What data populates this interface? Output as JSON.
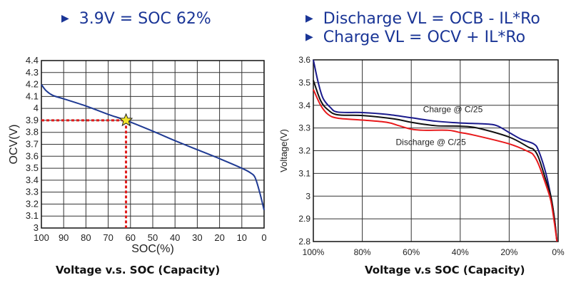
{
  "headlines": {
    "left": "3.9V = SOC 62%",
    "right": [
      "Discharge VL = OCB - IL*Ro",
      "Charge VL = OCV + IL*Ro"
    ],
    "bullet_icon": "triangle-right",
    "color": "#1a3596"
  },
  "chart_data": [
    {
      "type": "line",
      "caption": "Voltage v.s. SOC (Capacity)",
      "xlabel": "SOC(%)",
      "ylabel": "OCV(V)",
      "xlim": [
        100,
        0
      ],
      "ylim": [
        3,
        4.4
      ],
      "x_reversed": true,
      "grid": true,
      "xticks": [
        "100",
        "90",
        "80",
        "70",
        "60",
        "50",
        "40",
        "30",
        "20",
        "10",
        "0"
      ],
      "yticks": [
        "3",
        "3.1",
        "3.2",
        "3.3",
        "3.4",
        "3.5",
        "3.6",
        "3.7",
        "3.8",
        "3.9",
        "4",
        "4.1",
        "4.2",
        "4.3",
        "4.4"
      ],
      "series": [
        {
          "color": "#1f3a93",
          "x": [
            100,
            98,
            95,
            90,
            80,
            70,
            62,
            50,
            40,
            30,
            20,
            10,
            6,
            4,
            2,
            0
          ],
          "y": [
            4.2,
            4.15,
            4.11,
            4.08,
            4.02,
            3.95,
            3.9,
            3.81,
            3.73,
            3.655,
            3.58,
            3.5,
            3.46,
            3.42,
            3.3,
            3.15
          ]
        }
      ],
      "marker": {
        "shape": "star",
        "x": 62,
        "y": 3.9,
        "color": "#f5e72a",
        "guide_color": "#e01b1b"
      }
    },
    {
      "type": "line",
      "caption": "Voltage v.s SOC (Capacity)",
      "xlabel": "",
      "ylabel": "Voltage(V)",
      "xlim": [
        100,
        0
      ],
      "ylim": [
        2.8,
        3.6
      ],
      "x_reversed": true,
      "grid": true,
      "xticks": [
        "100%",
        "80%",
        "60%",
        "40%",
        "20%",
        "0%"
      ],
      "yticks": [
        "2.8",
        "2.9",
        "3",
        "3.1",
        "3.2",
        "3.3",
        "3.4",
        "3.5",
        "3.6"
      ],
      "annotations": [
        {
          "text": "Charge @ C/25",
          "x": 43,
          "y": 3.37
        },
        {
          "text": "Discharge @ C/25",
          "x": 52,
          "y": 3.225
        }
      ],
      "series": [
        {
          "color": "#1a1a8c",
          "x": [
            100,
            98,
            96,
            93,
            90,
            80,
            70,
            60,
            50,
            40,
            30,
            25,
            20,
            15,
            10,
            8,
            5,
            3,
            1.5,
            0.5
          ],
          "y": [
            3.6,
            3.5,
            3.43,
            3.39,
            3.37,
            3.368,
            3.36,
            3.345,
            3.33,
            3.322,
            3.318,
            3.31,
            3.28,
            3.25,
            3.23,
            3.2,
            3.1,
            3.0,
            2.9,
            2.8
          ]
        },
        {
          "color": "#111111",
          "x": [
            100,
            97,
            94,
            90,
            80,
            67,
            60,
            50,
            40,
            33,
            20,
            12,
            10,
            8,
            5,
            3,
            1.5,
            0.5
          ],
          "y": [
            3.51,
            3.42,
            3.38,
            3.358,
            3.355,
            3.34,
            3.325,
            3.31,
            3.308,
            3.3,
            3.26,
            3.215,
            3.205,
            3.17,
            3.07,
            3.0,
            2.9,
            2.8
          ]
        },
        {
          "color": "#e8191b",
          "x": [
            100,
            97,
            94,
            90,
            80,
            70,
            65,
            60,
            55,
            45,
            40,
            35,
            20,
            12,
            10,
            8,
            5,
            3,
            1.5,
            0.5
          ],
          "y": [
            3.47,
            3.4,
            3.36,
            3.343,
            3.335,
            3.325,
            3.31,
            3.295,
            3.29,
            3.29,
            3.28,
            3.27,
            3.23,
            3.195,
            3.18,
            3.14,
            3.05,
            2.98,
            2.88,
            2.8
          ]
        }
      ]
    }
  ]
}
